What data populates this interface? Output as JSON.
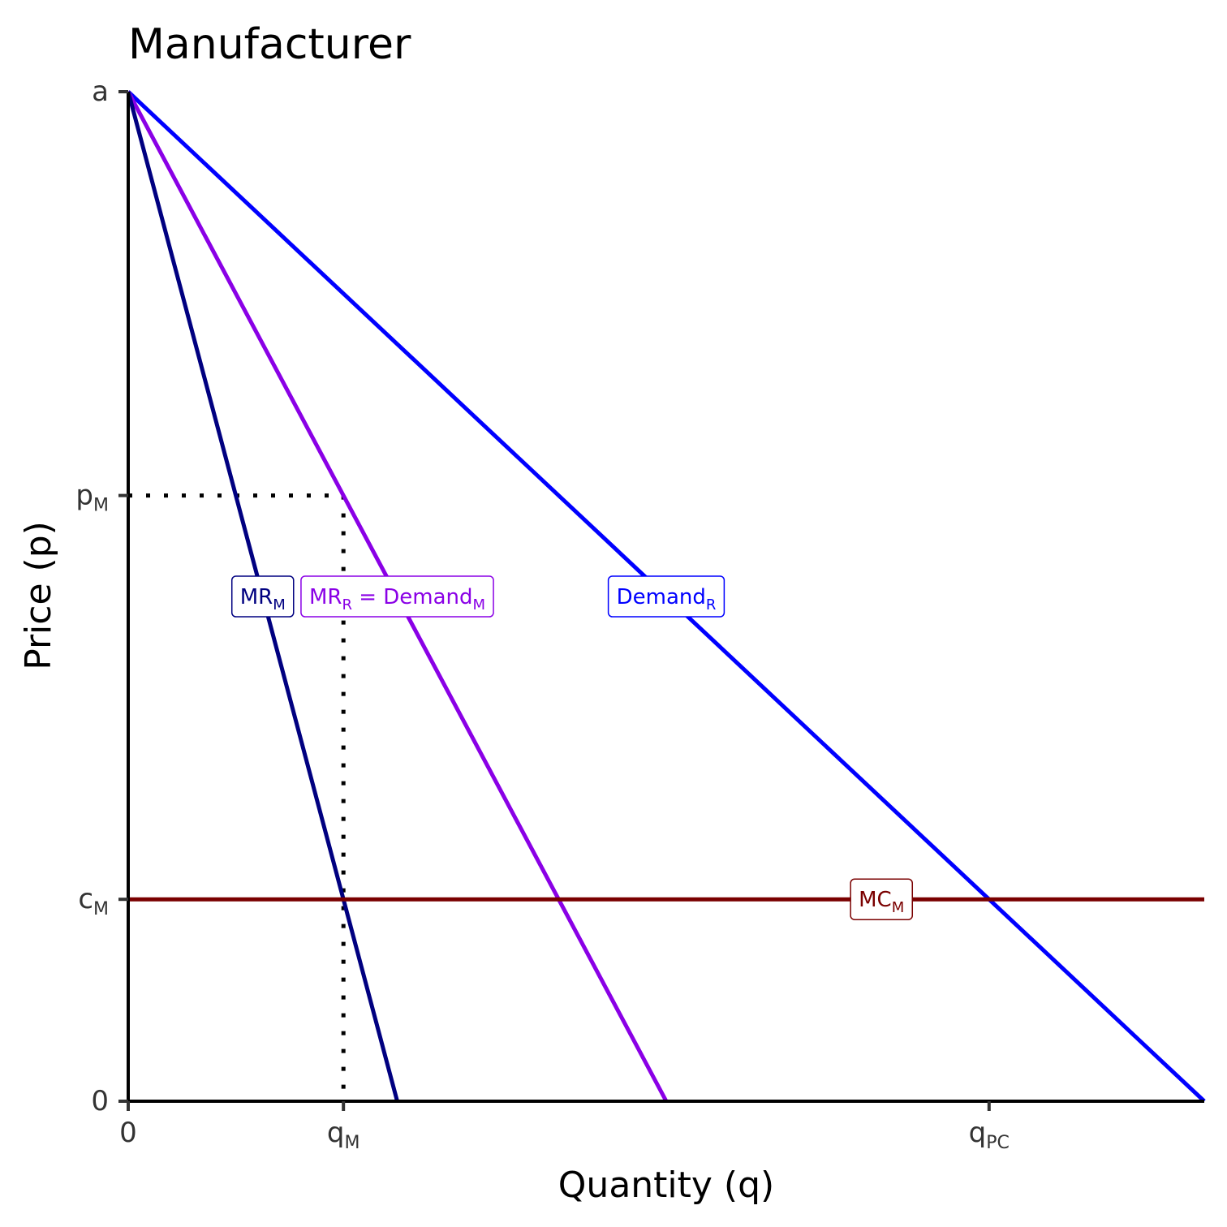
{
  "chart_data": {
    "type": "line",
    "title": "Manufacturer",
    "xlabel": "Quantity (q)",
    "ylabel": "Price (p)",
    "xlim": [
      0,
      1
    ],
    "ylim": [
      0,
      1
    ],
    "x_ticks": [
      {
        "value": 0,
        "label": "0",
        "sub": ""
      },
      {
        "value": 0.2,
        "label": "q",
        "sub": "M"
      },
      {
        "value": 0.8,
        "label": "q",
        "sub": "PC"
      }
    ],
    "y_ticks": [
      {
        "value": 0,
        "label": "0",
        "sub": ""
      },
      {
        "value": 0.2,
        "label": "c",
        "sub": "M"
      },
      {
        "value": 0.6,
        "label": "p",
        "sub": "M"
      },
      {
        "value": 1.0,
        "label": "a",
        "sub": ""
      }
    ],
    "series": [
      {
        "name": "Demand_R",
        "label_main": "Demand",
        "label_sub": "R",
        "color": "#0000ff",
        "points": [
          [
            0,
            1
          ],
          [
            1,
            0
          ]
        ],
        "label_at": [
          0.5,
          0.5
        ]
      },
      {
        "name": "MR_R = Demand_M",
        "label_parts": [
          [
            "MR",
            "R"
          ],
          [
            " = Demand",
            "M"
          ]
        ],
        "color": "#8a00e6",
        "points": [
          [
            0,
            1
          ],
          [
            0.5,
            0
          ]
        ],
        "label_at": [
          0.25,
          0.5
        ]
      },
      {
        "name": "MR_M",
        "label_main": "MR",
        "label_sub": "M",
        "color": "#000080",
        "points": [
          [
            0,
            1
          ],
          [
            0.25,
            0
          ]
        ],
        "label_at": [
          0.125,
          0.5
        ]
      },
      {
        "name": "MC_M",
        "label_main": "MC",
        "label_sub": "M",
        "color": "#7a0000",
        "points": [
          [
            0,
            0.2
          ],
          [
            1,
            0.2
          ]
        ],
        "label_at": [
          0.7,
          0.2
        ]
      }
    ],
    "guides": [
      {
        "type": "dotted",
        "from": [
          0,
          0.6
        ],
        "to": [
          0.2,
          0.6
        ]
      },
      {
        "type": "dotted",
        "from": [
          0.2,
          0.6
        ],
        "to": [
          0.2,
          0
        ]
      }
    ],
    "grid": false,
    "legend": "none"
  }
}
